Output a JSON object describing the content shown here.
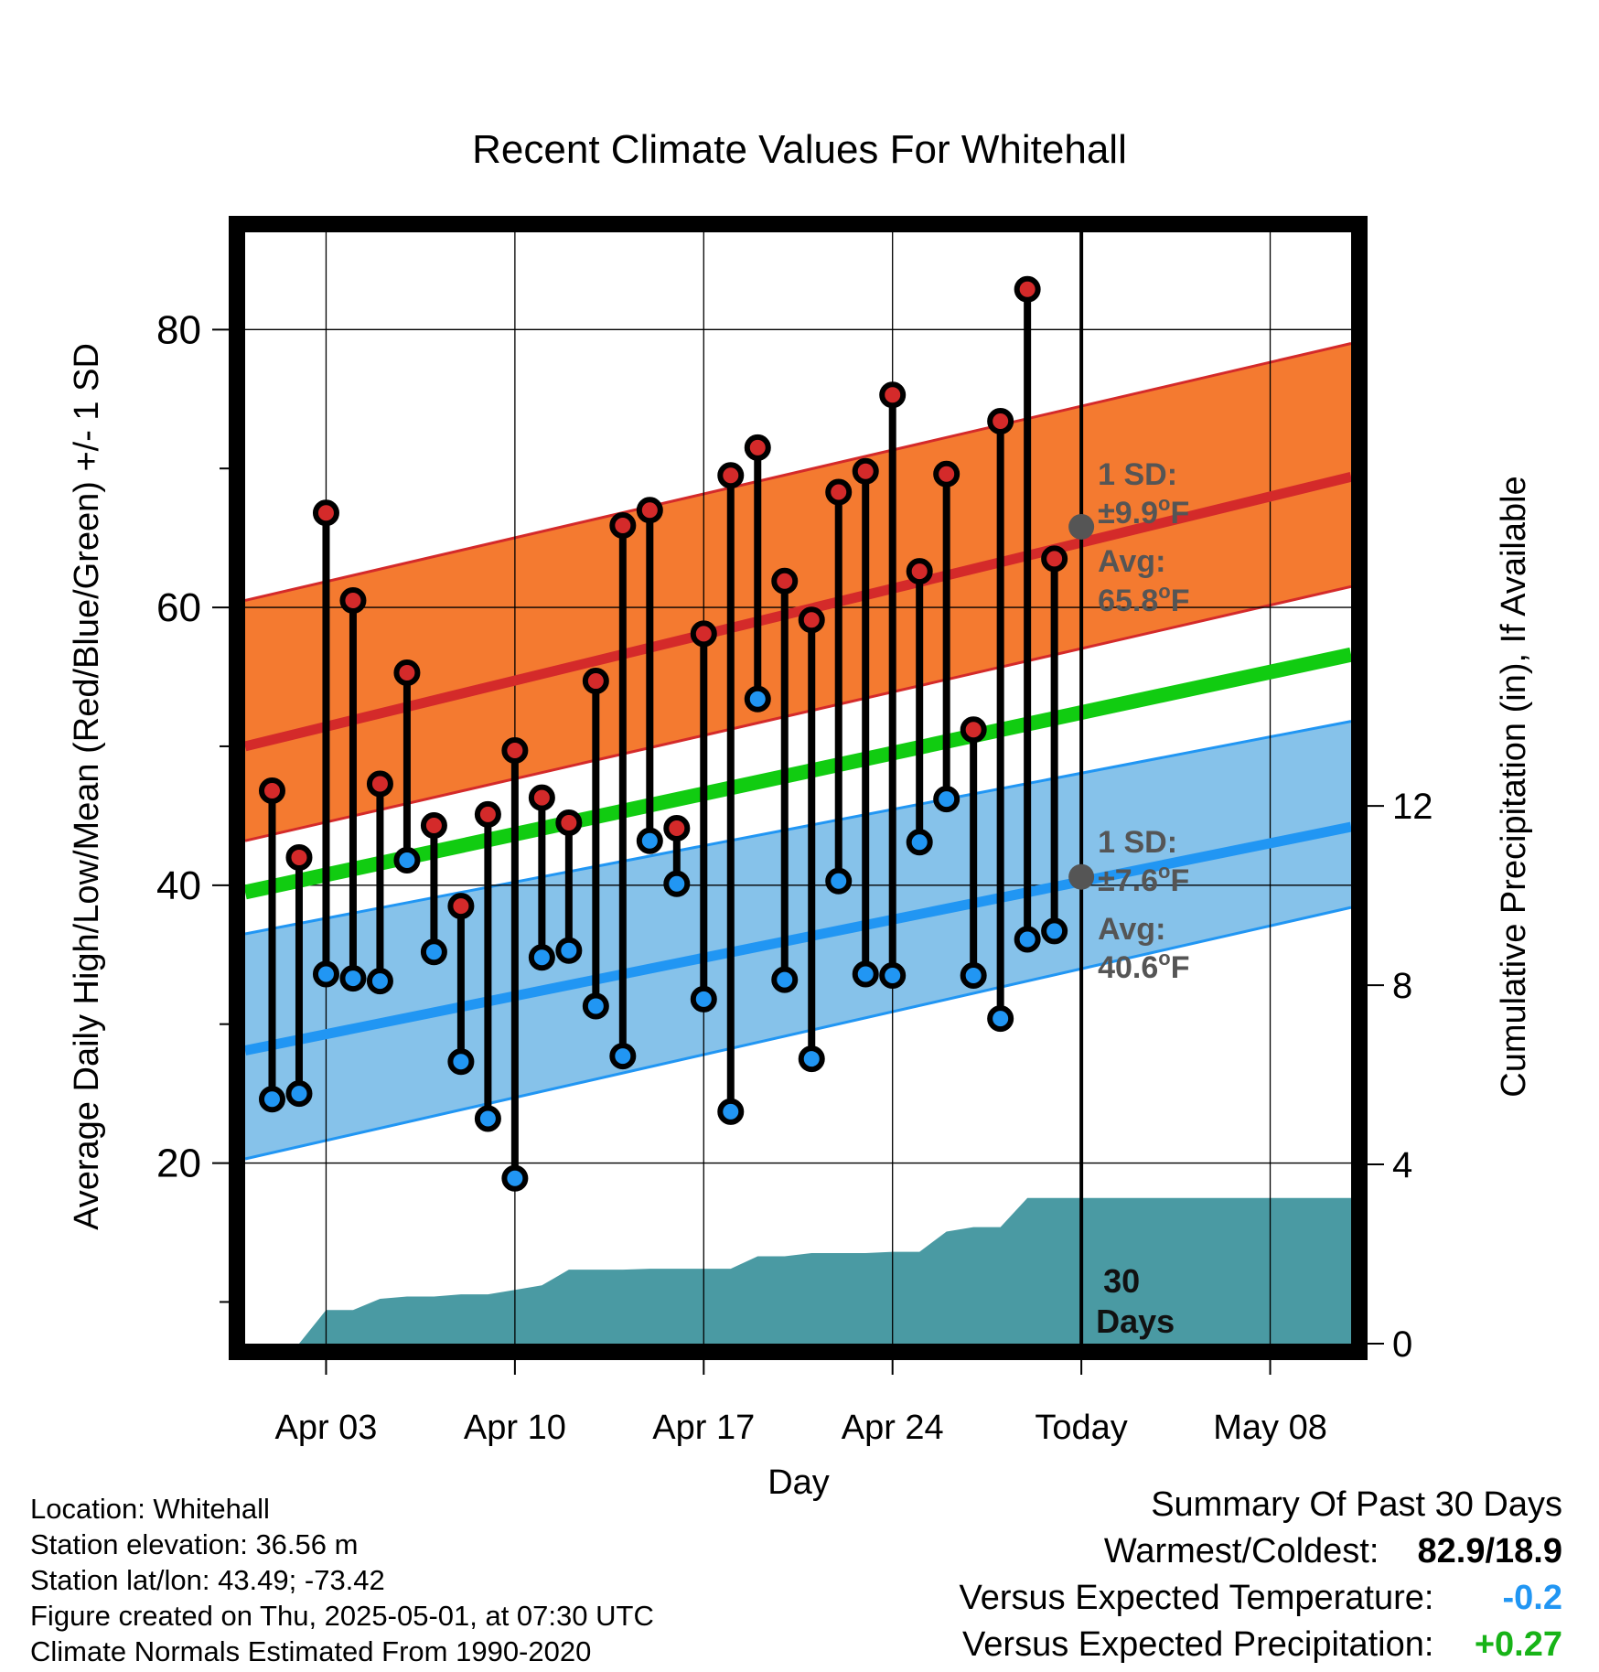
{
  "colors": {
    "high": "#d42a2a",
    "high_band": "#f47a30",
    "low": "#2196f3",
    "low_band": "#86c2ea",
    "mean": "#11cc11",
    "precip": "#4a9aa3",
    "sd_label": "#555555",
    "vs_temp": "#2196f3",
    "vs_precip": "#17b317"
  },
  "chart_data": {
    "type": "line",
    "title": "Recent Climate Values For Whitehall",
    "xlabel": "Day",
    "ylabel": "Average Daily High/Low/Mean (Red/Blue/Green) +/- 1 SD",
    "y2label": "Cumulative Precipitation (in), If Available",
    "x_range": [
      "Mar 31",
      "May 11"
    ],
    "ylim": [
      7,
      87
    ],
    "y2lim": [
      0,
      24.8
    ],
    "yticks": [
      20,
      40,
      60,
      80
    ],
    "y2ticks": [
      0,
      4,
      8,
      12
    ],
    "xticks": [
      {
        "day": "Apr 03",
        "label": "Apr 03"
      },
      {
        "day": "Apr 10",
        "label": "Apr 10"
      },
      {
        "day": "Apr 17",
        "label": "Apr 17"
      },
      {
        "day": "Apr 24",
        "label": "Apr 24"
      },
      {
        "day": "May 01",
        "label": "Today"
      },
      {
        "day": "May 08",
        "label": "May 08"
      }
    ],
    "today": "May 01",
    "grid": true,
    "normals": {
      "day": [
        "Mar 31",
        "May 11"
      ],
      "high_mean": [
        50.0,
        69.4
      ],
      "high_sd_upper": [
        60.5,
        79.0
      ],
      "high_sd_lower": [
        43.2,
        61.5
      ],
      "mean": [
        39.5,
        56.6
      ],
      "low_mean": [
        28.1,
        44.2
      ],
      "low_sd_upper": [
        36.5,
        51.8
      ],
      "low_sd_lower": [
        20.3,
        38.4
      ]
    },
    "series": [
      {
        "name": "High",
        "day": [
          "Apr 01",
          "Apr 02",
          "Apr 03",
          "Apr 04",
          "Apr 05",
          "Apr 06",
          "Apr 07",
          "Apr 08",
          "Apr 09",
          "Apr 10",
          "Apr 11",
          "Apr 12",
          "Apr 13",
          "Apr 14",
          "Apr 15",
          "Apr 16",
          "Apr 17",
          "Apr 18",
          "Apr 19",
          "Apr 20",
          "Apr 21",
          "Apr 22",
          "Apr 23",
          "Apr 24",
          "Apr 25",
          "Apr 26",
          "Apr 27",
          "Apr 28",
          "Apr 29",
          "Apr 30"
        ],
        "values": [
          46.8,
          42.0,
          66.8,
          60.5,
          47.3,
          55.3,
          44.3,
          38.5,
          45.1,
          49.7,
          46.3,
          44.5,
          54.7,
          65.9,
          67.0,
          44.1,
          58.1,
          69.5,
          71.5,
          61.9,
          59.1,
          68.3,
          69.8,
          75.3,
          62.6,
          69.6,
          51.2,
          73.4,
          82.9,
          63.5
        ]
      },
      {
        "name": "Low",
        "day": [
          "Apr 01",
          "Apr 02",
          "Apr 03",
          "Apr 04",
          "Apr 05",
          "Apr 06",
          "Apr 07",
          "Apr 08",
          "Apr 09",
          "Apr 10",
          "Apr 11",
          "Apr 12",
          "Apr 13",
          "Apr 14",
          "Apr 15",
          "Apr 16",
          "Apr 17",
          "Apr 18",
          "Apr 19",
          "Apr 20",
          "Apr 21",
          "Apr 22",
          "Apr 23",
          "Apr 24",
          "Apr 25",
          "Apr 26",
          "Apr 27",
          "Apr 28",
          "Apr 29",
          "Apr 30"
        ],
        "values": [
          24.6,
          25.0,
          33.6,
          33.3,
          33.1,
          41.8,
          35.2,
          27.3,
          23.2,
          18.9,
          34.8,
          35.3,
          31.3,
          27.7,
          43.2,
          40.1,
          31.8,
          23.7,
          53.4,
          33.2,
          27.5,
          40.3,
          33.6,
          33.5,
          43.1,
          46.2,
          33.5,
          30.4,
          36.1,
          36.7
        ]
      }
    ],
    "precip": {
      "day": [
        "Apr 01",
        "Apr 02",
        "Apr 03",
        "Apr 04",
        "Apr 05",
        "Apr 06",
        "Apr 07",
        "Apr 08",
        "Apr 09",
        "Apr 10",
        "Apr 11",
        "Apr 12",
        "Apr 13",
        "Apr 14",
        "Apr 15",
        "Apr 16",
        "Apr 17",
        "Apr 18",
        "Apr 19",
        "Apr 20",
        "Apr 21",
        "Apr 22",
        "Apr 23",
        "Apr 24",
        "Apr 25",
        "Apr 26",
        "Apr 27",
        "Apr 28",
        "Apr 29",
        "Apr 30",
        "May 01",
        "May 11"
      ],
      "values": [
        0,
        0,
        0.75,
        0.75,
        1.0,
        1.05,
        1.05,
        1.1,
        1.1,
        1.2,
        1.3,
        1.65,
        1.65,
        1.65,
        1.67,
        1.67,
        1.67,
        1.67,
        1.95,
        1.95,
        2.02,
        2.02,
        2.02,
        2.05,
        2.05,
        2.5,
        2.6,
        2.6,
        3.25,
        3.25,
        3.25,
        3.25
      ]
    },
    "annotations": {
      "high_sd": {
        "line1": "1 SD:",
        "line2": "±9.9",
        "unit": "F"
      },
      "high_avg": {
        "line1": "Avg:",
        "line2": "65.8",
        "unit": "F",
        "value": 65.8
      },
      "low_sd": {
        "line1": "1 SD:",
        "line2": "±7.6",
        "unit": "F"
      },
      "low_avg": {
        "line1": "Avg:",
        "line2": "40.6",
        "unit": "F",
        "value": 40.6
      },
      "degree": "o",
      "window": {
        "line1": "30",
        "line2": "Days"
      }
    }
  },
  "info": {
    "location": "Location: Whitehall",
    "elevation": "Station elevation: 36.56 m",
    "latlon": "Station lat/lon: 43.49; -73.42",
    "created": "Figure created on Thu, 2025-05-01, at 07:30 UTC",
    "normals": "Climate Normals Estimated From 1990-2020"
  },
  "summary": {
    "title": "Summary Of Past 30 Days",
    "warm_label": "Warmest/Coldest:",
    "warm_value": "82.9/18.9",
    "temp_label": "Versus Expected Temperature:",
    "temp_value": "-0.2",
    "precip_label": "Versus Expected Precipitation:",
    "precip_value": "+0.27"
  }
}
